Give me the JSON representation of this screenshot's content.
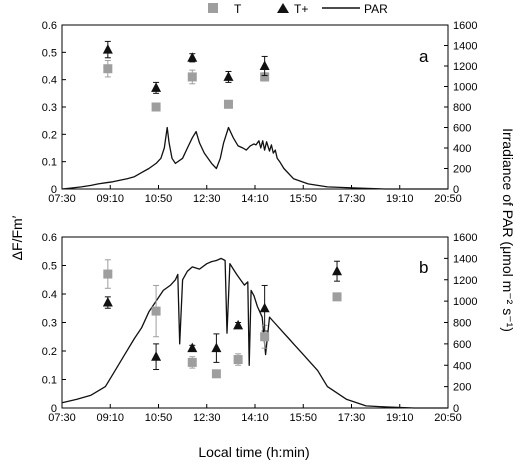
{
  "chart_data": [
    {
      "type": "scatter+line",
      "panel": "a",
      "legend": [
        "T",
        "T+",
        "PAR"
      ],
      "xlabel": "Local time (h:min)",
      "ylabel_left": "ΔF/Fm′",
      "ylabel_right": "Irradiance of PAR (μmol m⁻² s⁻¹)",
      "x_ticks": [
        "07:30",
        "09:10",
        "10:50",
        "12:30",
        "14:10",
        "15:50",
        "17:30",
        "19:10",
        "20:50"
      ],
      "y_left_ticks": [
        "0",
        "0.1",
        "0.2",
        "0.3",
        "0.4",
        "0.5",
        "0.6"
      ],
      "y_right_ticks": [
        "0",
        "200",
        "400",
        "600",
        "800",
        "1000",
        "1200",
        "1400",
        "1600"
      ],
      "xlim_min": [
        450,
        1250
      ],
      "ylim_left": [
        0,
        0.6
      ],
      "ylim_right": [
        0,
        1600
      ],
      "series": [
        {
          "name": "T",
          "marker": "square",
          "color": "#9e9e9e",
          "x_min": [
            545,
            645,
            720,
            795,
            870
          ],
          "y": [
            0.44,
            0.3,
            0.41,
            0.31,
            0.41
          ],
          "err": [
            0.03,
            0.01,
            0.025,
            0.01,
            0.015
          ]
        },
        {
          "name": "T+",
          "marker": "triangle",
          "color": "#111111",
          "x_min": [
            545,
            645,
            720,
            795,
            870
          ],
          "y": [
            0.51,
            0.37,
            0.48,
            0.41,
            0.45
          ],
          "err": [
            0.03,
            0.02,
            0.015,
            0.02,
            0.035
          ]
        },
        {
          "name": "PAR",
          "marker": "line",
          "color": "#111111",
          "x_min": [
            450,
            470,
            490,
            510,
            525,
            540,
            555,
            570,
            585,
            600,
            615,
            630,
            645,
            655,
            662,
            668,
            672,
            678,
            685,
            700,
            710,
            720,
            728,
            735,
            745,
            760,
            770,
            778,
            785,
            795,
            805,
            815,
            825,
            832,
            840,
            848,
            852,
            858,
            862,
            866,
            870,
            874,
            880,
            884,
            888,
            892,
            896,
            902,
            910,
            930,
            960,
            1000,
            1060,
            1120,
            1180,
            1230,
            1250
          ],
          "y": [
            0,
            10,
            20,
            35,
            50,
            60,
            70,
            85,
            100,
            120,
            160,
            200,
            250,
            300,
            400,
            600,
            450,
            300,
            250,
            300,
            400,
            500,
            560,
            450,
            350,
            250,
            200,
            300,
            450,
            600,
            500,
            420,
            400,
            380,
            420,
            440,
            430,
            470,
            400,
            470,
            380,
            460,
            370,
            430,
            350,
            380,
            300,
            260,
            200,
            100,
            50,
            20,
            10,
            0,
            0,
            0,
            0
          ]
        }
      ]
    },
    {
      "type": "scatter+line",
      "panel": "b",
      "legend": [
        "T",
        "T+",
        "PAR"
      ],
      "xlabel": "Local time (h:min)",
      "ylabel_left": "ΔF/Fm′",
      "ylabel_right": "Irradiance of PAR (μmol m⁻² s⁻¹)",
      "x_ticks": [
        "07:30",
        "09:10",
        "10:50",
        "12:30",
        "14:10",
        "15:50",
        "17:30",
        "19:10",
        "20:50"
      ],
      "y_left_ticks": [
        "0",
        "0.1",
        "0.2",
        "0.3",
        "0.4",
        "0.5",
        "0.6"
      ],
      "y_right_ticks": [
        "0",
        "200",
        "400",
        "600",
        "800",
        "1000",
        "1200",
        "1400",
        "1600"
      ],
      "xlim_min": [
        450,
        1250
      ],
      "ylim_left": [
        0,
        0.6
      ],
      "ylim_right": [
        0,
        1600
      ],
      "series": [
        {
          "name": "T",
          "marker": "square",
          "color": "#9e9e9e",
          "x_min": [
            545,
            645,
            720,
            770,
            815,
            870,
            1020
          ],
          "y": [
            0.47,
            0.34,
            0.16,
            0.12,
            0.17,
            0.25,
            0.39
          ],
          "err": [
            0.05,
            0.09,
            0.02,
            0.01,
            0.02,
            0.04,
            0.01
          ]
        },
        {
          "name": "T+",
          "marker": "triangle",
          "color": "#111111",
          "x_min": [
            545,
            645,
            720,
            770,
            815,
            870,
            1020
          ],
          "y": [
            0.37,
            0.18,
            0.21,
            0.21,
            0.29,
            0.35,
            0.48
          ],
          "err": [
            0.02,
            0.045,
            0.01,
            0.05,
            0.01,
            0.08,
            0.035
          ]
        },
        {
          "name": "PAR",
          "marker": "line",
          "color": "#111111",
          "x_min": [
            450,
            480,
            510,
            540,
            560,
            580,
            600,
            615,
            630,
            645,
            660,
            675,
            685,
            690,
            694,
            700,
            710,
            720,
            735,
            750,
            760,
            770,
            780,
            788,
            792,
            798,
            805,
            812,
            820,
            828,
            835,
            838,
            842,
            848,
            855,
            860,
            865,
            872,
            880,
            890,
            900,
            910,
            920,
            930,
            940,
            950,
            960,
            980,
            1000,
            1040,
            1080,
            1120,
            1180,
            1250
          ],
          "y": [
            50,
            80,
            120,
            200,
            350,
            500,
            650,
            750,
            900,
            1000,
            1100,
            1150,
            1200,
            1250,
            600,
            1200,
            1280,
            1320,
            1300,
            1350,
            1370,
            1380,
            1400,
            1380,
            700,
            1350,
            1300,
            1250,
            1200,
            1150,
            1180,
            400,
            1100,
            1050,
            950,
            900,
            850,
            500,
            850,
            800,
            750,
            700,
            650,
            600,
            550,
            500,
            450,
            350,
            200,
            80,
            20,
            10,
            0,
            0
          ]
        }
      ]
    }
  ]
}
